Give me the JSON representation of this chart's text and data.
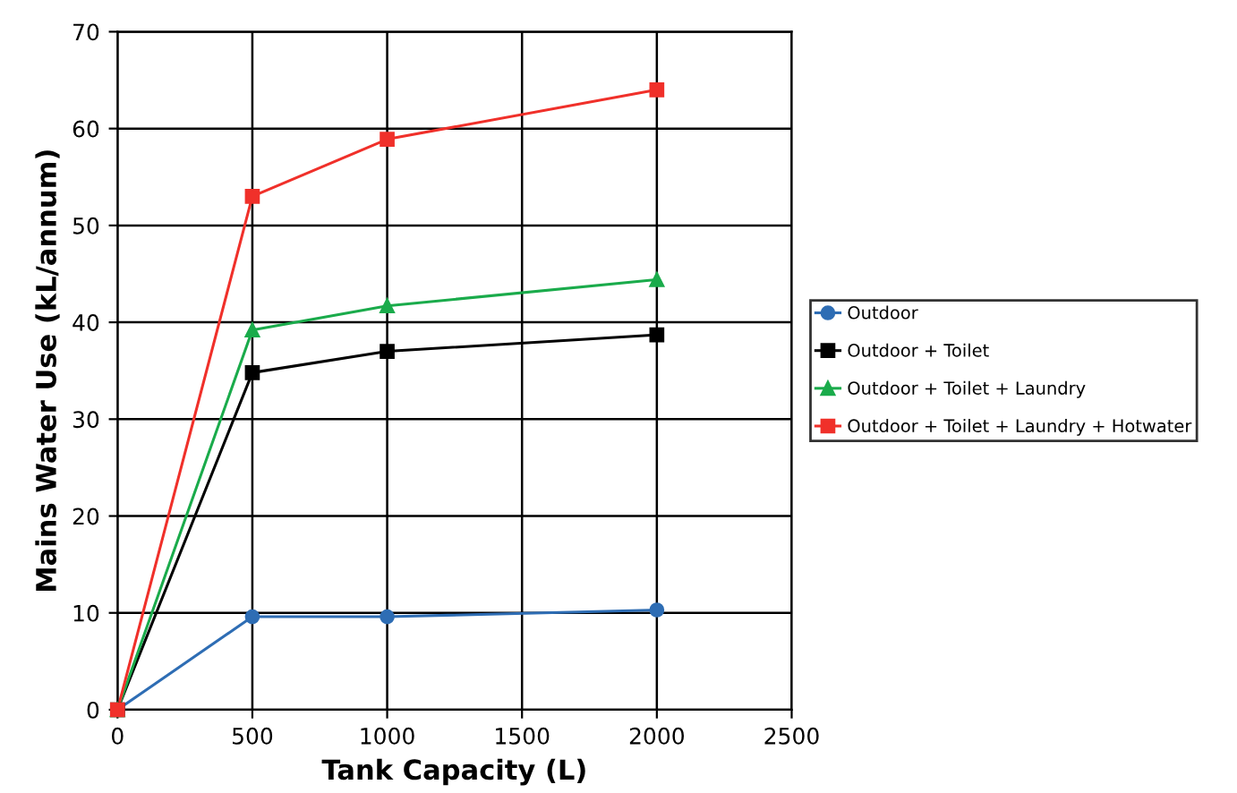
{
  "chart_data": {
    "type": "line",
    "xlabel": "Tank Capacity (L)",
    "ylabel": "Mains Water Use (kL/annum)",
    "x": [
      0,
      500,
      1000,
      2000
    ],
    "series": [
      {
        "name": "Outdoor",
        "color": "#2e6db4",
        "marker": "circle",
        "values": [
          0,
          9.6,
          9.6,
          10.3
        ]
      },
      {
        "name": "Outdoor + Toilet",
        "color": "#000000",
        "marker": "square",
        "values": [
          0,
          34.8,
          37,
          38.7
        ]
      },
      {
        "name": "Outdoor + Toilet + Laundry",
        "color": "#1aab4b",
        "marker": "triangle",
        "values": [
          0,
          39.2,
          41.7,
          44.4
        ]
      },
      {
        "name": "Outdoor + Toilet + Laundry + Hotwater",
        "color": "#f0302a",
        "marker": "square",
        "values": [
          0,
          53,
          58.9,
          64
        ]
      }
    ],
    "xlim": [
      0,
      2500
    ],
    "xticks": [
      0,
      500,
      1000,
      1500,
      2000,
      2500
    ],
    "ylim": [
      0,
      70
    ],
    "yticks": [
      0,
      10,
      20,
      30,
      40,
      50,
      60,
      70
    ],
    "grid": true,
    "legend": "right",
    "line_style": "solid"
  }
}
